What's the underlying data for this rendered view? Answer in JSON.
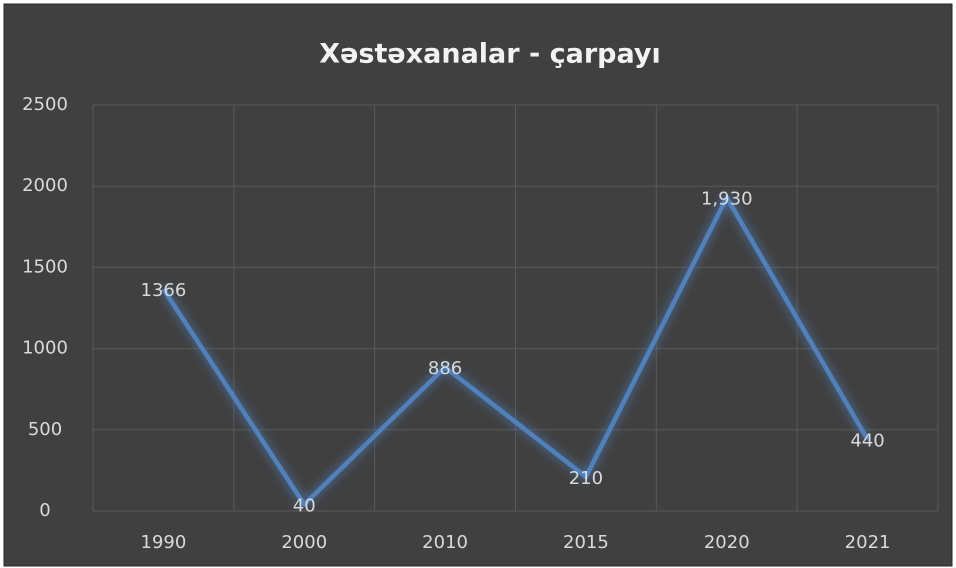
{
  "chart_data": {
    "type": "line",
    "title": "Xəstəxanalar - çarpayı",
    "categories": [
      "1990",
      "2000",
      "2010",
      "2015",
      "2020",
      "2021"
    ],
    "series": [
      {
        "name": "çarpayı",
        "color": "#4f81bd",
        "values": [
          1366,
          40,
          886,
          210,
          1930,
          440
        ],
        "value_labels": [
          "1366",
          "40",
          "886",
          "210",
          "1,930",
          "440"
        ]
      }
    ],
    "ylim": [
      0,
      2500
    ],
    "yticks": [
      0,
      500,
      1000,
      1500,
      2000,
      2500
    ],
    "grid": true
  }
}
